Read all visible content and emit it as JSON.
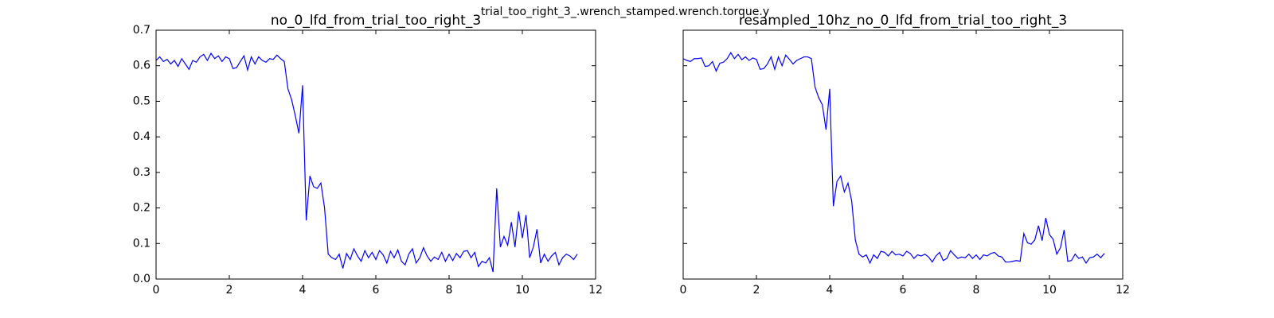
{
  "title": "trial_too_right_3_.wrench_stamped.wrench.torque.y",
  "chart_data": [
    {
      "type": "line",
      "title": "no_0_lfd_from_trial_too_right_3",
      "color": "#0000ff",
      "xlim": [
        0,
        12
      ],
      "xticks": [
        0,
        2,
        4,
        6,
        8,
        10,
        12
      ],
      "ylim": [
        0,
        0.7
      ],
      "yticks": [
        {
          "value": 0,
          "label": "0.0"
        },
        0.1,
        0.2,
        0.3,
        0.4,
        0.5,
        0.6,
        0.7
      ],
      "x": [
        0,
        0.1,
        0.2,
        0.3,
        0.4,
        0.5,
        0.6,
        0.7,
        0.8,
        0.9,
        1,
        1.1,
        1.2,
        1.3,
        1.4,
        1.5,
        1.6,
        1.7,
        1.8,
        1.9,
        2,
        2.1,
        2.2,
        2.3,
        2.4,
        2.5,
        2.6,
        2.7,
        2.8,
        2.9,
        3,
        3.1,
        3.2,
        3.3,
        3.4,
        3.5,
        3.6,
        3.7,
        3.8,
        3.9,
        4,
        4.1,
        4.2,
        4.3,
        4.4,
        4.5,
        4.6,
        4.7,
        4.8,
        4.9,
        5,
        5.1,
        5.2,
        5.3,
        5.4,
        5.5,
        5.6,
        5.7,
        5.8,
        5.9,
        6,
        6.1,
        6.2,
        6.3,
        6.4,
        6.5,
        6.6,
        6.7,
        6.8,
        6.9,
        7,
        7.1,
        7.2,
        7.3,
        7.4,
        7.5,
        7.6,
        7.7,
        7.8,
        7.9,
        8,
        8.1,
        8.2,
        8.3,
        8.4,
        8.5,
        8.6,
        8.7,
        8.8,
        8.9,
        9,
        9.1,
        9.2,
        9.3,
        9.4,
        9.5,
        9.6,
        9.7,
        9.8,
        9.9,
        10,
        10.1,
        10.2,
        10.3,
        10.4,
        10.5,
        10.6,
        10.7,
        10.8,
        10.9,
        11,
        11.1,
        11.2,
        11.3,
        11.4,
        11.5
      ],
      "values": [
        0.615,
        0.625,
        0.612,
        0.618,
        0.605,
        0.615,
        0.598,
        0.62,
        0.605,
        0.59,
        0.615,
        0.61,
        0.625,
        0.632,
        0.615,
        0.635,
        0.62,
        0.628,
        0.612,
        0.625,
        0.62,
        0.592,
        0.595,
        0.612,
        0.628,
        0.588,
        0.625,
        0.605,
        0.625,
        0.615,
        0.61,
        0.62,
        0.618,
        0.63,
        0.62,
        0.612,
        0.535,
        0.505,
        0.46,
        0.41,
        0.545,
        0.165,
        0.29,
        0.26,
        0.255,
        0.27,
        0.2,
        0.07,
        0.06,
        0.055,
        0.07,
        0.03,
        0.072,
        0.055,
        0.085,
        0.065,
        0.05,
        0.08,
        0.06,
        0.075,
        0.055,
        0.08,
        0.068,
        0.045,
        0.078,
        0.06,
        0.082,
        0.05,
        0.04,
        0.07,
        0.085,
        0.045,
        0.06,
        0.088,
        0.065,
        0.05,
        0.062,
        0.055,
        0.075,
        0.05,
        0.07,
        0.052,
        0.072,
        0.06,
        0.078,
        0.08,
        0.06,
        0.075,
        0.035,
        0.05,
        0.045,
        0.06,
        0.02,
        0.255,
        0.09,
        0.12,
        0.095,
        0.16,
        0.09,
        0.19,
        0.115,
        0.18,
        0.06,
        0.09,
        0.14,
        0.045,
        0.07,
        0.05,
        0.065,
        0.075,
        0.04,
        0.06,
        0.07,
        0.065,
        0.055,
        0.07
      ]
    },
    {
      "type": "line",
      "title": "resampled_10hz_no_0_lfd_from_trial_too_right_3",
      "color": "#0000ff",
      "xlim": [
        0,
        12
      ],
      "xticks": [
        0,
        2,
        4,
        6,
        8,
        10,
        12
      ],
      "ylim": [
        0,
        0.7
      ],
      "yticks": [
        0,
        0.1,
        0.2,
        0.3,
        0.4,
        0.5,
        0.6,
        0.7
      ],
      "x": [
        0,
        0.1,
        0.2,
        0.3,
        0.4,
        0.5,
        0.6,
        0.7,
        0.8,
        0.9,
        1,
        1.1,
        1.2,
        1.3,
        1.4,
        1.5,
        1.6,
        1.7,
        1.8,
        1.9,
        2,
        2.1,
        2.2,
        2.3,
        2.4,
        2.5,
        2.6,
        2.7,
        2.8,
        2.9,
        3,
        3.1,
        3.2,
        3.3,
        3.4,
        3.5,
        3.6,
        3.7,
        3.8,
        3.9,
        4,
        4.1,
        4.2,
        4.3,
        4.4,
        4.5,
        4.6,
        4.7,
        4.8,
        4.9,
        5,
        5.1,
        5.2,
        5.3,
        5.4,
        5.5,
        5.6,
        5.7,
        5.8,
        5.9,
        6,
        6.1,
        6.2,
        6.3,
        6.4,
        6.5,
        6.6,
        6.7,
        6.8,
        6.9,
        7,
        7.1,
        7.2,
        7.3,
        7.4,
        7.5,
        7.6,
        7.7,
        7.8,
        7.9,
        8,
        8.1,
        8.2,
        8.3,
        8.4,
        8.5,
        8.6,
        8.7,
        8.8,
        8.9,
        9,
        9.1,
        9.2,
        9.3,
        9.4,
        9.5,
        9.6,
        9.7,
        9.8,
        9.9,
        10,
        10.1,
        10.2,
        10.3,
        10.4,
        10.5,
        10.6,
        10.7,
        10.8,
        10.9,
        11,
        11.1,
        11.2,
        11.3,
        11.4,
        11.5
      ],
      "values": [
        0.62,
        0.615,
        0.612,
        0.62,
        0.62,
        0.622,
        0.598,
        0.6,
        0.612,
        0.585,
        0.607,
        0.61,
        0.62,
        0.637,
        0.62,
        0.632,
        0.617,
        0.625,
        0.615,
        0.622,
        0.618,
        0.59,
        0.592,
        0.605,
        0.625,
        0.59,
        0.625,
        0.6,
        0.63,
        0.618,
        0.605,
        0.615,
        0.62,
        0.625,
        0.625,
        0.62,
        0.54,
        0.51,
        0.49,
        0.42,
        0.535,
        0.205,
        0.275,
        0.29,
        0.245,
        0.27,
        0.22,
        0.11,
        0.07,
        0.062,
        0.068,
        0.045,
        0.068,
        0.058,
        0.078,
        0.075,
        0.065,
        0.078,
        0.068,
        0.07,
        0.065,
        0.078,
        0.072,
        0.058,
        0.068,
        0.065,
        0.07,
        0.062,
        0.048,
        0.065,
        0.075,
        0.052,
        0.058,
        0.08,
        0.068,
        0.058,
        0.062,
        0.06,
        0.07,
        0.058,
        0.068,
        0.055,
        0.068,
        0.065,
        0.072,
        0.075,
        0.065,
        0.062,
        0.048,
        0.048,
        0.05,
        0.052,
        0.05,
        0.128,
        0.102,
        0.098,
        0.11,
        0.15,
        0.108,
        0.172,
        0.125,
        0.112,
        0.07,
        0.088,
        0.138,
        0.05,
        0.052,
        0.07,
        0.058,
        0.062,
        0.045,
        0.06,
        0.062,
        0.07,
        0.06,
        0.072
      ]
    }
  ]
}
